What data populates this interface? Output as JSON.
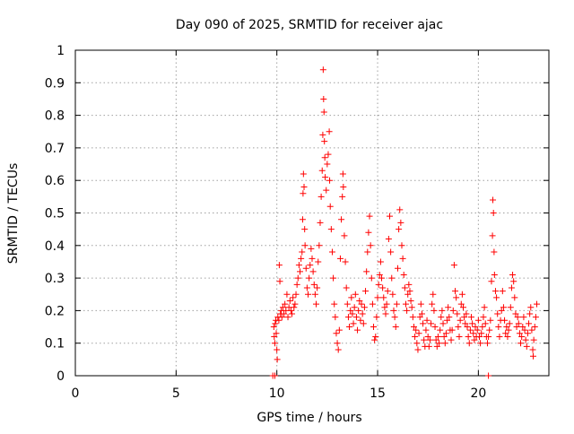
{
  "chart_data": {
    "type": "scatter",
    "title": "Day 090 of 2025, SRMTID for receiver ajac",
    "xlabel": "GPS time / hours",
    "ylabel": "SRMTID / TECUs",
    "xlim": [
      0,
      23.5
    ],
    "ylim": [
      0,
      1
    ],
    "xticks": [
      0,
      5,
      10,
      15,
      20
    ],
    "yticks": [
      0,
      0.1,
      0.2,
      0.3,
      0.4,
      0.5,
      0.6,
      0.7,
      0.8,
      0.9,
      1
    ],
    "xtick_labels": [
      "0",
      "5",
      "10",
      "15",
      "20"
    ],
    "ytick_labels": [
      "0",
      "0.1",
      "0.2",
      "0.3",
      "0.4",
      "0.5",
      "0.6",
      "0.7",
      "0.8",
      "0.9",
      "1"
    ],
    "grid": true,
    "marker": "plus",
    "color": "#ff0000",
    "series": [
      {
        "name": "SRMTID",
        "points": [
          [
            9.8,
            0.0
          ],
          [
            9.9,
            0.0
          ],
          [
            20.5,
            0.0
          ],
          [
            9.85,
            0.15
          ],
          [
            9.87,
            0.12
          ],
          [
            9.9,
            0.1
          ],
          [
            9.92,
            0.16
          ],
          [
            9.95,
            0.17
          ],
          [
            9.97,
            0.13
          ],
          [
            10.0,
            0.08
          ],
          [
            10.02,
            0.05
          ],
          [
            10.05,
            0.18
          ],
          [
            10.1,
            0.17
          ],
          [
            10.12,
            0.34
          ],
          [
            10.15,
            0.29
          ],
          [
            10.18,
            0.19
          ],
          [
            10.22,
            0.2
          ],
          [
            10.25,
            0.18
          ],
          [
            10.3,
            0.21
          ],
          [
            10.35,
            0.19
          ],
          [
            10.4,
            0.22
          ],
          [
            10.45,
            0.2
          ],
          [
            10.5,
            0.25
          ],
          [
            10.55,
            0.18
          ],
          [
            10.6,
            0.21
          ],
          [
            10.65,
            0.23
          ],
          [
            10.7,
            0.2
          ],
          [
            10.75,
            0.19
          ],
          [
            10.8,
            0.24
          ],
          [
            10.85,
            0.21
          ],
          [
            10.9,
            0.22
          ],
          [
            10.95,
            0.25
          ],
          [
            11.0,
            0.28
          ],
          [
            11.05,
            0.3
          ],
          [
            11.1,
            0.34
          ],
          [
            11.15,
            0.32
          ],
          [
            11.2,
            0.36
          ],
          [
            11.25,
            0.38
          ],
          [
            11.28,
            0.48
          ],
          [
            11.3,
            0.56
          ],
          [
            11.32,
            0.62
          ],
          [
            11.35,
            0.58
          ],
          [
            11.38,
            0.45
          ],
          [
            11.4,
            0.4
          ],
          [
            11.45,
            0.33
          ],
          [
            11.5,
            0.27
          ],
          [
            11.55,
            0.25
          ],
          [
            11.6,
            0.3
          ],
          [
            11.65,
            0.34
          ],
          [
            11.7,
            0.39
          ],
          [
            11.75,
            0.36
          ],
          [
            11.8,
            0.32
          ],
          [
            11.85,
            0.28
          ],
          [
            11.9,
            0.25
          ],
          [
            11.95,
            0.22
          ],
          [
            12.0,
            0.27
          ],
          [
            12.05,
            0.35
          ],
          [
            12.1,
            0.4
          ],
          [
            12.15,
            0.47
          ],
          [
            12.2,
            0.55
          ],
          [
            12.25,
            0.63
          ],
          [
            12.28,
            0.74
          ],
          [
            12.3,
            0.94
          ],
          [
            12.32,
            0.85
          ],
          [
            12.34,
            0.81
          ],
          [
            12.36,
            0.72
          ],
          [
            12.38,
            0.67
          ],
          [
            12.4,
            0.61
          ],
          [
            12.45,
            0.57
          ],
          [
            12.5,
            0.65
          ],
          [
            12.55,
            0.68
          ],
          [
            12.6,
            0.75
          ],
          [
            12.62,
            0.6
          ],
          [
            12.65,
            0.52
          ],
          [
            12.7,
            0.45
          ],
          [
            12.75,
            0.38
          ],
          [
            12.8,
            0.3
          ],
          [
            12.85,
            0.22
          ],
          [
            12.9,
            0.18
          ],
          [
            12.95,
            0.13
          ],
          [
            13.0,
            0.1
          ],
          [
            13.05,
            0.08
          ],
          [
            13.1,
            0.14
          ],
          [
            13.15,
            0.36
          ],
          [
            13.2,
            0.48
          ],
          [
            13.25,
            0.55
          ],
          [
            13.28,
            0.62
          ],
          [
            13.3,
            0.58
          ],
          [
            13.35,
            0.43
          ],
          [
            13.4,
            0.35
          ],
          [
            13.45,
            0.27
          ],
          [
            13.5,
            0.22
          ],
          [
            13.55,
            0.18
          ],
          [
            13.6,
            0.15
          ],
          [
            13.65,
            0.2
          ],
          [
            13.7,
            0.24
          ],
          [
            13.75,
            0.19
          ],
          [
            13.8,
            0.16
          ],
          [
            13.85,
            0.21
          ],
          [
            13.9,
            0.25
          ],
          [
            13.95,
            0.18
          ],
          [
            14.0,
            0.14
          ],
          [
            14.05,
            0.2
          ],
          [
            14.1,
            0.23
          ],
          [
            14.15,
            0.17
          ],
          [
            14.2,
            0.22
          ],
          [
            14.25,
            0.19
          ],
          [
            14.3,
            0.16
          ],
          [
            14.35,
            0.21
          ],
          [
            14.4,
            0.26
          ],
          [
            14.45,
            0.32
          ],
          [
            14.5,
            0.38
          ],
          [
            14.55,
            0.44
          ],
          [
            14.6,
            0.49
          ],
          [
            14.65,
            0.4
          ],
          [
            14.7,
            0.3
          ],
          [
            14.75,
            0.22
          ],
          [
            14.8,
            0.15
          ],
          [
            14.85,
            0.11
          ],
          [
            14.9,
            0.12
          ],
          [
            14.95,
            0.18
          ],
          [
            15.0,
            0.24
          ],
          [
            15.05,
            0.28
          ],
          [
            15.1,
            0.31
          ],
          [
            15.15,
            0.35
          ],
          [
            15.2,
            0.3
          ],
          [
            15.25,
            0.27
          ],
          [
            15.3,
            0.24
          ],
          [
            15.35,
            0.21
          ],
          [
            15.4,
            0.19
          ],
          [
            15.45,
            0.22
          ],
          [
            15.5,
            0.26
          ],
          [
            15.55,
            0.42
          ],
          [
            15.6,
            0.49
          ],
          [
            15.65,
            0.38
          ],
          [
            15.7,
            0.3
          ],
          [
            15.75,
            0.25
          ],
          [
            15.8,
            0.2
          ],
          [
            15.85,
            0.18
          ],
          [
            15.9,
            0.15
          ],
          [
            15.95,
            0.22
          ],
          [
            16.0,
            0.33
          ],
          [
            16.05,
            0.45
          ],
          [
            16.1,
            0.51
          ],
          [
            16.15,
            0.47
          ],
          [
            16.2,
            0.4
          ],
          [
            16.25,
            0.36
          ],
          [
            16.3,
            0.31
          ],
          [
            16.35,
            0.27
          ],
          [
            16.4,
            0.22
          ],
          [
            16.45,
            0.2
          ],
          [
            16.5,
            0.25
          ],
          [
            16.55,
            0.28
          ],
          [
            16.6,
            0.26
          ],
          [
            16.65,
            0.23
          ],
          [
            16.7,
            0.21
          ],
          [
            16.75,
            0.18
          ],
          [
            16.8,
            0.15
          ],
          [
            16.85,
            0.12
          ],
          [
            16.9,
            0.14
          ],
          [
            16.95,
            0.1
          ],
          [
            17.0,
            0.08
          ],
          [
            17.05,
            0.13
          ],
          [
            17.1,
            0.18
          ],
          [
            17.15,
            0.22
          ],
          [
            17.2,
            0.19
          ],
          [
            17.25,
            0.16
          ],
          [
            17.3,
            0.11
          ],
          [
            17.35,
            0.09
          ],
          [
            17.4,
            0.14
          ],
          [
            17.45,
            0.17
          ],
          [
            17.5,
            0.12
          ],
          [
            17.55,
            0.09
          ],
          [
            17.6,
            0.11
          ],
          [
            17.65,
            0.16
          ],
          [
            17.7,
            0.22
          ],
          [
            17.75,
            0.25
          ],
          [
            17.8,
            0.2
          ],
          [
            17.85,
            0.15
          ],
          [
            17.9,
            0.11
          ],
          [
            17.95,
            0.09
          ],
          [
            18.0,
            0.12
          ],
          [
            18.05,
            0.1
          ],
          [
            18.1,
            0.14
          ],
          [
            18.15,
            0.18
          ],
          [
            18.2,
            0.2
          ],
          [
            18.25,
            0.16
          ],
          [
            18.3,
            0.12
          ],
          [
            18.35,
            0.1
          ],
          [
            18.4,
            0.13
          ],
          [
            18.45,
            0.17
          ],
          [
            18.5,
            0.21
          ],
          [
            18.55,
            0.18
          ],
          [
            18.6,
            0.14
          ],
          [
            18.65,
            0.11
          ],
          [
            18.7,
            0.14
          ],
          [
            18.75,
            0.2
          ],
          [
            18.8,
            0.34
          ],
          [
            18.85,
            0.26
          ],
          [
            18.9,
            0.24
          ],
          [
            18.95,
            0.19
          ],
          [
            19.0,
            0.15
          ],
          [
            19.05,
            0.12
          ],
          [
            19.1,
            0.17
          ],
          [
            19.15,
            0.22
          ],
          [
            19.2,
            0.25
          ],
          [
            19.25,
            0.21
          ],
          [
            19.3,
            0.18
          ],
          [
            19.35,
            0.16
          ],
          [
            19.4,
            0.19
          ],
          [
            19.45,
            0.15
          ],
          [
            19.5,
            0.12
          ],
          [
            19.55,
            0.1
          ],
          [
            19.6,
            0.14
          ],
          [
            19.65,
            0.18
          ],
          [
            19.7,
            0.16
          ],
          [
            19.75,
            0.13
          ],
          [
            19.8,
            0.11
          ],
          [
            19.85,
            0.15
          ],
          [
            19.9,
            0.12
          ],
          [
            19.95,
            0.14
          ],
          [
            20.0,
            0.17
          ],
          [
            20.05,
            0.12
          ],
          [
            20.1,
            0.1
          ],
          [
            20.15,
            0.13
          ],
          [
            20.2,
            0.15
          ],
          [
            20.25,
            0.18
          ],
          [
            20.3,
            0.21
          ],
          [
            20.35,
            0.16
          ],
          [
            20.4,
            0.12
          ],
          [
            20.45,
            0.1
          ],
          [
            20.5,
            0.12
          ],
          [
            20.55,
            0.14
          ],
          [
            20.6,
            0.17
          ],
          [
            20.65,
            0.29
          ],
          [
            20.7,
            0.43
          ],
          [
            20.72,
            0.54
          ],
          [
            20.75,
            0.5
          ],
          [
            20.78,
            0.38
          ],
          [
            20.8,
            0.31
          ],
          [
            20.85,
            0.26
          ],
          [
            20.9,
            0.24
          ],
          [
            20.95,
            0.19
          ],
          [
            21.0,
            0.15
          ],
          [
            21.05,
            0.12
          ],
          [
            21.1,
            0.17
          ],
          [
            21.15,
            0.2
          ],
          [
            21.2,
            0.26
          ],
          [
            21.25,
            0.21
          ],
          [
            21.3,
            0.17
          ],
          [
            21.35,
            0.13
          ],
          [
            21.4,
            0.15
          ],
          [
            21.45,
            0.12
          ],
          [
            21.5,
            0.14
          ],
          [
            21.55,
            0.16
          ],
          [
            21.6,
            0.21
          ],
          [
            21.65,
            0.27
          ],
          [
            21.7,
            0.31
          ],
          [
            21.75,
            0.29
          ],
          [
            21.8,
            0.24
          ],
          [
            21.85,
            0.19
          ],
          [
            21.9,
            0.15
          ],
          [
            21.95,
            0.18
          ],
          [
            22.0,
            0.16
          ],
          [
            22.05,
            0.13
          ],
          [
            22.1,
            0.1
          ],
          [
            22.15,
            0.12
          ],
          [
            22.2,
            0.15
          ],
          [
            22.25,
            0.18
          ],
          [
            22.3,
            0.14
          ],
          [
            22.35,
            0.11
          ],
          [
            22.4,
            0.09
          ],
          [
            22.45,
            0.13
          ],
          [
            22.5,
            0.16
          ],
          [
            22.55,
            0.19
          ],
          [
            22.6,
            0.21
          ],
          [
            22.65,
            0.14
          ],
          [
            22.7,
            0.08
          ],
          [
            22.72,
            0.06
          ],
          [
            22.75,
            0.11
          ],
          [
            22.8,
            0.15
          ],
          [
            22.85,
            0.18
          ],
          [
            22.9,
            0.22
          ]
        ]
      }
    ]
  }
}
